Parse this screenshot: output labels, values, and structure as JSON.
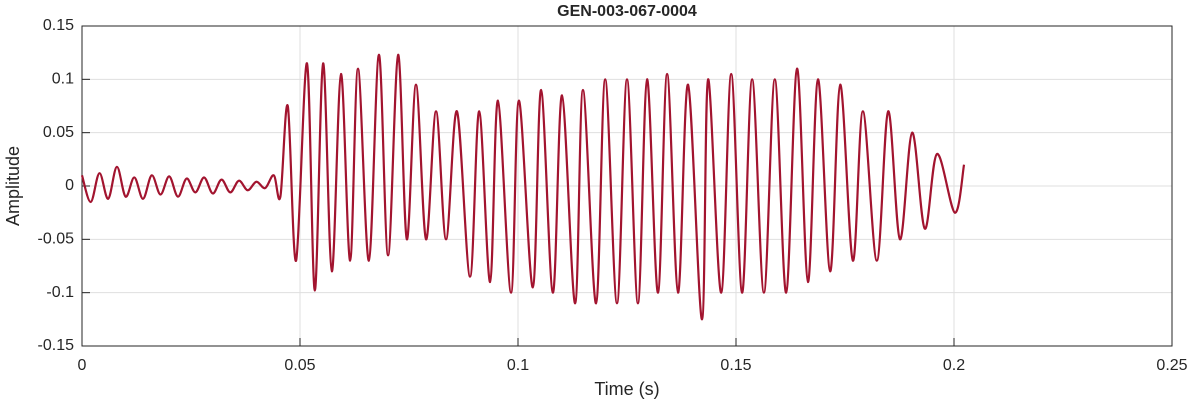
{
  "chart_data": {
    "type": "line",
    "title": "GEN-003-067-0004",
    "x_label": "Time (s)",
    "y_label": "Amplitude",
    "xlim": [
      0,
      0.25
    ],
    "xticks": [
      0,
      0.05,
      0.1,
      0.15,
      0.2,
      0.25
    ],
    "ylim": [
      -0.15,
      0.15
    ],
    "yticks": [
      -0.15,
      -0.1,
      -0.05,
      0,
      0.05,
      0.1,
      0.15
    ],
    "grid": true,
    "series": [
      {
        "color": "#a2142f",
        "x": [
          0,
          0.002,
          0.004,
          0.006,
          0.008,
          0.01,
          0.012,
          0.014,
          0.016,
          0.018,
          0.02,
          0.022,
          0.024,
          0.026,
          0.028,
          0.03,
          0.032,
          0.034,
          0.036,
          0.038,
          0.04,
          0.042,
          0.044,
          0.0455,
          0.0472,
          0.0491,
          0.0516,
          0.0534,
          0.0553,
          0.0573,
          0.0594,
          0.0615,
          0.0633,
          0.0658,
          0.0681,
          0.0702,
          0.0725,
          0.0745,
          0.0766,
          0.0789,
          0.0812,
          0.0835,
          0.086,
          0.089,
          0.0911,
          0.0936,
          0.0954,
          0.0984,
          0.1002,
          0.1034,
          0.1053,
          0.108,
          0.1101,
          0.1131,
          0.1149,
          0.1179,
          0.12,
          0.1227,
          0.125,
          0.1275,
          0.1296,
          0.1321,
          0.1342,
          0.1367,
          0.139,
          0.1422,
          0.1436,
          0.1466,
          0.1489,
          0.1514,
          0.1537,
          0.1564,
          0.1589,
          0.1615,
          0.164,
          0.1665,
          0.1688,
          0.1716,
          0.1739,
          0.1768,
          0.1791,
          0.1823,
          0.1849,
          0.1876,
          0.1904,
          0.1933,
          0.1961,
          0.2002,
          0.2023
        ],
        "values": [
          0.01,
          -0.015,
          0.012,
          -0.012,
          0.018,
          -0.01,
          0.008,
          -0.012,
          0.01,
          -0.008,
          0.009,
          -0.01,
          0.007,
          -0.006,
          0.008,
          -0.007,
          0.006,
          -0.006,
          0.005,
          -0.004,
          0.004,
          -0.002,
          0.01,
          -0.01,
          0.075,
          -0.07,
          0.115,
          -0.098,
          0.115,
          -0.08,
          0.105,
          -0.07,
          0.11,
          -0.07,
          0.123,
          -0.065,
          0.123,
          -0.05,
          0.095,
          -0.05,
          0.07,
          -0.05,
          0.07,
          -0.085,
          0.07,
          -0.09,
          0.08,
          -0.1,
          0.08,
          -0.095,
          0.09,
          -0.1,
          0.085,
          -0.11,
          0.09,
          -0.11,
          0.1,
          -0.11,
          0.1,
          -0.11,
          0.1,
          -0.1,
          0.105,
          -0.1,
          0.095,
          -0.125,
          0.1,
          -0.1,
          0.105,
          -0.1,
          0.1,
          -0.1,
          0.1,
          -0.1,
          0.11,
          -0.09,
          0.1,
          -0.08,
          0.095,
          -0.07,
          0.07,
          -0.07,
          0.07,
          -0.05,
          0.05,
          -0.04,
          0.03,
          -0.025,
          0.02
        ]
      }
    ]
  }
}
